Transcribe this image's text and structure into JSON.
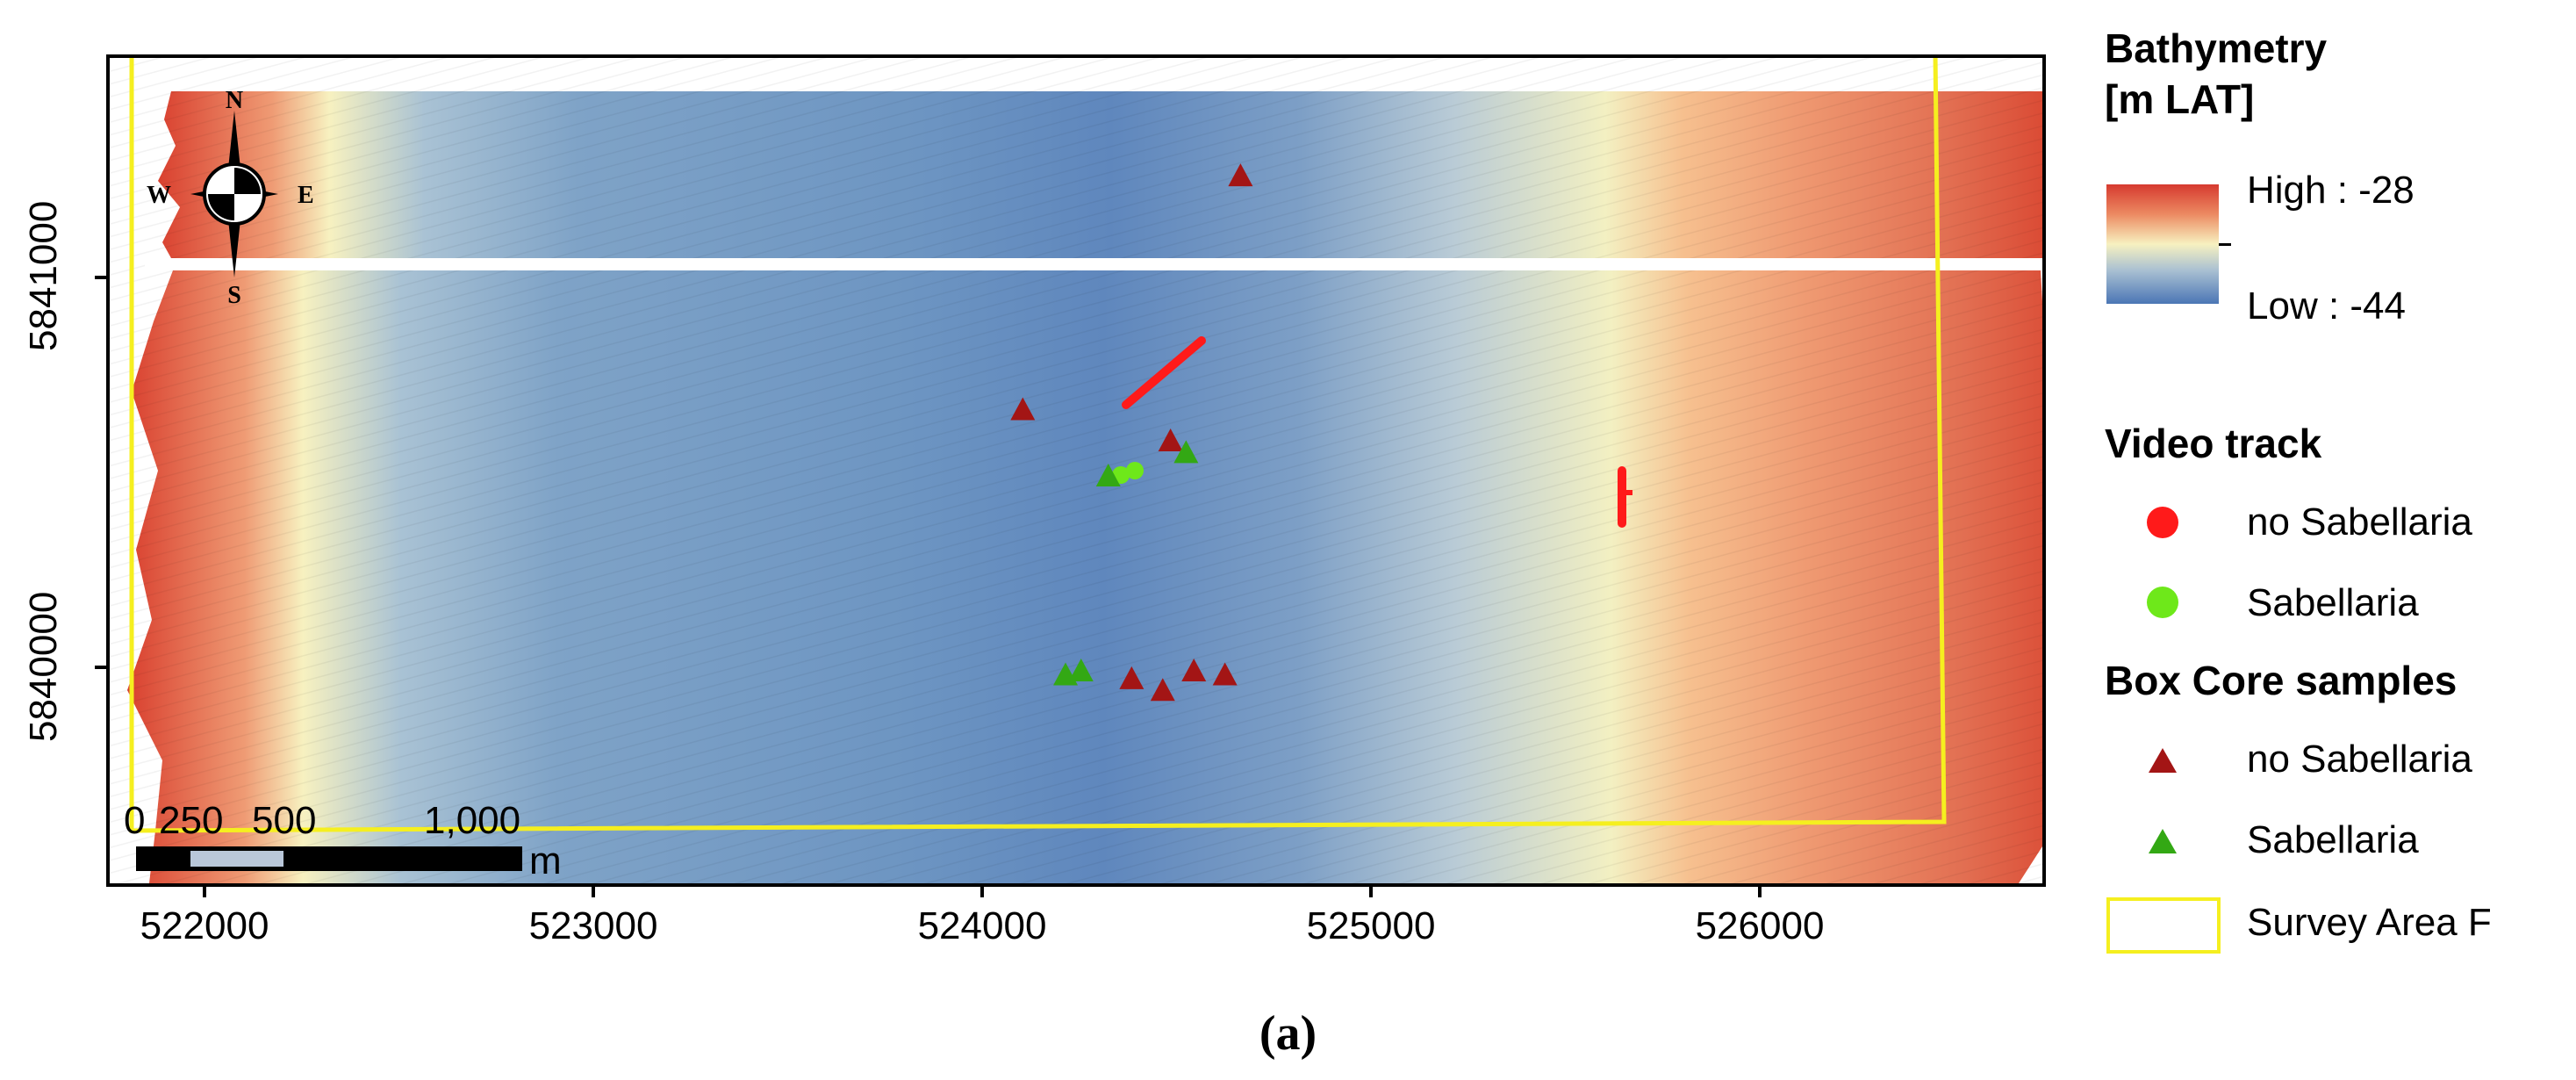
{
  "map": {
    "x_ticks": [
      "522000",
      "523000",
      "524000",
      "525000",
      "526000"
    ],
    "y_ticks": [
      "5841000",
      "5840000"
    ],
    "north_arrow": {
      "n": "N",
      "s": "S",
      "e": "E",
      "w": "W"
    },
    "scale_bar": {
      "labels": [
        "0",
        "250",
        "500",
        "1,000"
      ],
      "unit": "m"
    }
  },
  "legend": {
    "bathymetry_title_line1": "Bathymetry",
    "bathymetry_title_line2": "[m LAT]",
    "high_label": "High : -28",
    "low_label": "Low : -44",
    "video_title": "Video track",
    "video_no": "no Sabellaria",
    "video_yes": "Sabellaria",
    "box_title": "Box Core samples",
    "box_no": "no Sabellaria",
    "box_yes": "Sabellaria",
    "survey_label": "Survey Area F"
  },
  "caption": "(a)",
  "colors": {
    "high": "#d63a2f",
    "mid": "#f7f1c0",
    "low": "#4b76b5",
    "no_sabellaria_video": "#ff1a1a",
    "sabellaria_video": "#6ee81a",
    "no_sabellaria_core": "#a31515",
    "sabellaria_core": "#33a814",
    "survey": "#f5ef1f"
  },
  "samples": {
    "box_core_no": [
      {
        "e": 524660,
        "n": 5841270
      },
      {
        "e": 524100,
        "n": 5840670
      },
      {
        "e": 524480,
        "n": 5840590
      },
      {
        "e": 524380,
        "n": 5839980
      },
      {
        "e": 524460,
        "n": 5839950
      },
      {
        "e": 524540,
        "n": 5840000
      },
      {
        "e": 524620,
        "n": 5839990
      }
    ],
    "box_core_yes": [
      {
        "e": 524520,
        "n": 5840560
      },
      {
        "e": 524320,
        "n": 5840500
      },
      {
        "e": 524210,
        "n": 5839990
      },
      {
        "e": 524250,
        "n": 5840000
      }
    ]
  }
}
